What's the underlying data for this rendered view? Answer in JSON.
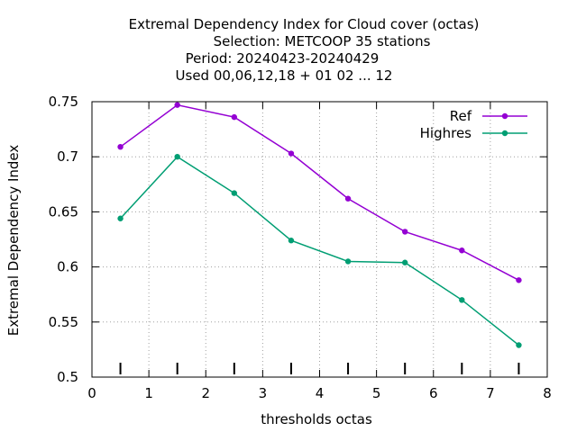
{
  "chart_data": {
    "type": "line",
    "title_lines": [
      "Extremal Dependency Index  for Cloud cover (octas)",
      "Selection: METCOOP     35 stations",
      "Period: 20240423-20240429",
      "Used  00,06,12,18 + 01 02 ... 12"
    ],
    "xlabel": "thresholds octas",
    "ylabel": "Extremal Dependency Index",
    "xlim": [
      0,
      8
    ],
    "ylim": [
      0.5,
      0.75
    ],
    "xticks": [
      "0",
      "1",
      "2",
      "3",
      "4",
      "5",
      "6",
      "7",
      "8"
    ],
    "yticks": [
      "0.5",
      "0.55",
      "0.6",
      "0.65",
      "0.7",
      "0.75"
    ],
    "grid": true,
    "legend_position": "top-right",
    "x": [
      0.5,
      1.5,
      2.5,
      3.5,
      4.5,
      5.5,
      6.5,
      7.5
    ],
    "series": [
      {
        "name": "Ref",
        "color": "#9400d3",
        "values": [
          0.709,
          0.747,
          0.736,
          0.703,
          0.662,
          0.632,
          0.615,
          0.588
        ]
      },
      {
        "name": "Highres",
        "color": "#009e73",
        "values": [
          0.644,
          0.7,
          0.667,
          0.624,
          0.605,
          0.604,
          0.57,
          0.529
        ]
      }
    ]
  }
}
